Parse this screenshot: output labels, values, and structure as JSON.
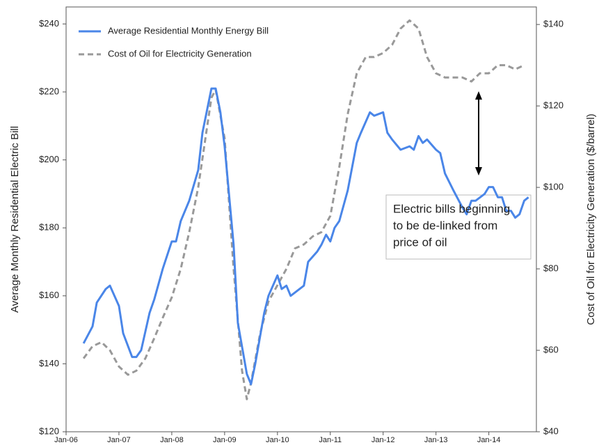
{
  "chart_data": {
    "type": "line",
    "ylabel": "Average Monthly Residential Electric Bill",
    "y2label": "Cost of Oil for Electricity Generation ($/barrel)",
    "annotation": [
      "Electric bills beginning",
      "to be de-linked from",
      "price of oil"
    ],
    "xlim": [
      2006,
      2014.9
    ],
    "xticks": [
      {
        "value": 2006,
        "label": "Jan-06"
      },
      {
        "value": 2007,
        "label": "Jan-07"
      },
      {
        "value": 2008,
        "label": "Jan-08"
      },
      {
        "value": 2009,
        "label": "Jan-09"
      },
      {
        "value": 2010,
        "label": "Jan-10"
      },
      {
        "value": 2011,
        "label": "Jan-11"
      },
      {
        "value": 2012,
        "label": "Jan-12"
      },
      {
        "value": 2013,
        "label": "Jan-13"
      },
      {
        "value": 2014,
        "label": "Jan-14"
      }
    ],
    "ylim": [
      120,
      245
    ],
    "yticks": [
      {
        "value": 120,
        "label": "$120"
      },
      {
        "value": 140,
        "label": "$140"
      },
      {
        "value": 160,
        "label": "$160"
      },
      {
        "value": 180,
        "label": "$180"
      },
      {
        "value": 200,
        "label": "$200"
      },
      {
        "value": 220,
        "label": "$220"
      },
      {
        "value": 240,
        "label": "$240"
      }
    ],
    "y2lim": [
      40,
      144.3
    ],
    "y2ticks": [
      {
        "value": 40,
        "label": "$40"
      },
      {
        "value": 60,
        "label": "$60"
      },
      {
        "value": 80,
        "label": "$80"
      },
      {
        "value": 100,
        "label": "$100"
      },
      {
        "value": 120,
        "label": "$120"
      },
      {
        "value": 140,
        "label": "$140"
      }
    ],
    "legend": "upper left",
    "series": [
      {
        "name": "Average Residential Monthly Energy Bill",
        "color": "#4a86e8",
        "axis": "y",
        "dashed": false,
        "x": [
          2006.33,
          2006.5,
          2006.58,
          2006.75,
          2006.83,
          2007.0,
          2007.08,
          2007.25,
          2007.33,
          2007.42,
          2007.58,
          2007.67,
          2007.83,
          2008.0,
          2008.08,
          2008.17,
          2008.33,
          2008.5,
          2008.58,
          2008.75,
          2008.83,
          2008.92,
          2009.0,
          2009.17,
          2009.25,
          2009.42,
          2009.5,
          2009.58,
          2009.75,
          2009.83,
          2010.0,
          2010.08,
          2010.17,
          2010.25,
          2010.5,
          2010.58,
          2010.75,
          2010.83,
          2010.92,
          2011.0,
          2011.08,
          2011.17,
          2011.33,
          2011.5,
          2011.58,
          2011.75,
          2011.83,
          2012.0,
          2012.08,
          2012.17,
          2012.33,
          2012.5,
          2012.58,
          2012.67,
          2012.75,
          2012.83,
          2013.0,
          2013.08,
          2013.17,
          2013.33,
          2013.5,
          2013.58,
          2013.67,
          2013.75,
          2013.92,
          2014.0,
          2014.08,
          2014.17,
          2014.25,
          2014.33,
          2014.42,
          2014.5,
          2014.58,
          2014.67,
          2014.75
        ],
        "values": [
          146,
          151,
          158,
          162,
          163,
          157,
          149,
          142,
          142,
          144,
          155,
          159,
          168,
          176,
          176,
          182,
          188,
          197,
          208,
          221,
          221,
          214,
          204,
          175,
          152,
          137,
          134,
          140,
          155,
          160,
          166,
          162,
          163,
          160,
          163,
          170,
          173,
          175,
          178,
          176,
          180,
          182,
          191,
          205,
          208,
          214,
          213,
          214,
          208,
          206,
          203,
          204,
          203,
          207,
          205,
          206,
          203,
          202,
          196,
          191,
          186,
          184,
          188,
          188,
          190,
          192,
          192,
          189,
          189,
          185,
          185,
          183,
          184,
          188,
          189
        ]
      },
      {
        "name": "Cost of Oil for Electricity Generation",
        "color": "#999999",
        "axis": "y2",
        "dashed": true,
        "x": [
          2006.33,
          2006.5,
          2006.67,
          2006.83,
          2007.0,
          2007.17,
          2007.33,
          2007.5,
          2007.67,
          2007.83,
          2008.0,
          2008.17,
          2008.33,
          2008.5,
          2008.67,
          2008.75,
          2008.83,
          2009.0,
          2009.17,
          2009.33,
          2009.42,
          2009.5,
          2009.67,
          2009.83,
          2010.0,
          2010.17,
          2010.33,
          2010.5,
          2010.67,
          2010.83,
          2011.0,
          2011.17,
          2011.33,
          2011.5,
          2011.67,
          2011.83,
          2012.0,
          2012.17,
          2012.33,
          2012.5,
          2012.67,
          2012.83,
          2013.0,
          2013.17,
          2013.33,
          2013.5,
          2013.67,
          2013.83,
          2014.0,
          2014.17,
          2014.33,
          2014.5,
          2014.67
        ],
        "values": [
          58,
          61,
          62,
          60,
          56,
          54,
          55,
          58,
          63,
          68,
          73,
          80,
          89,
          100,
          115,
          122,
          124,
          112,
          80,
          55,
          48,
          52,
          64,
          72,
          76,
          80,
          85,
          86,
          88,
          89,
          93,
          105,
          118,
          128,
          132,
          132,
          133,
          135,
          139,
          141,
          139,
          132,
          128,
          127,
          127,
          127,
          126,
          128,
          128,
          130,
          130,
          129,
          130
        ]
      }
    ]
  }
}
